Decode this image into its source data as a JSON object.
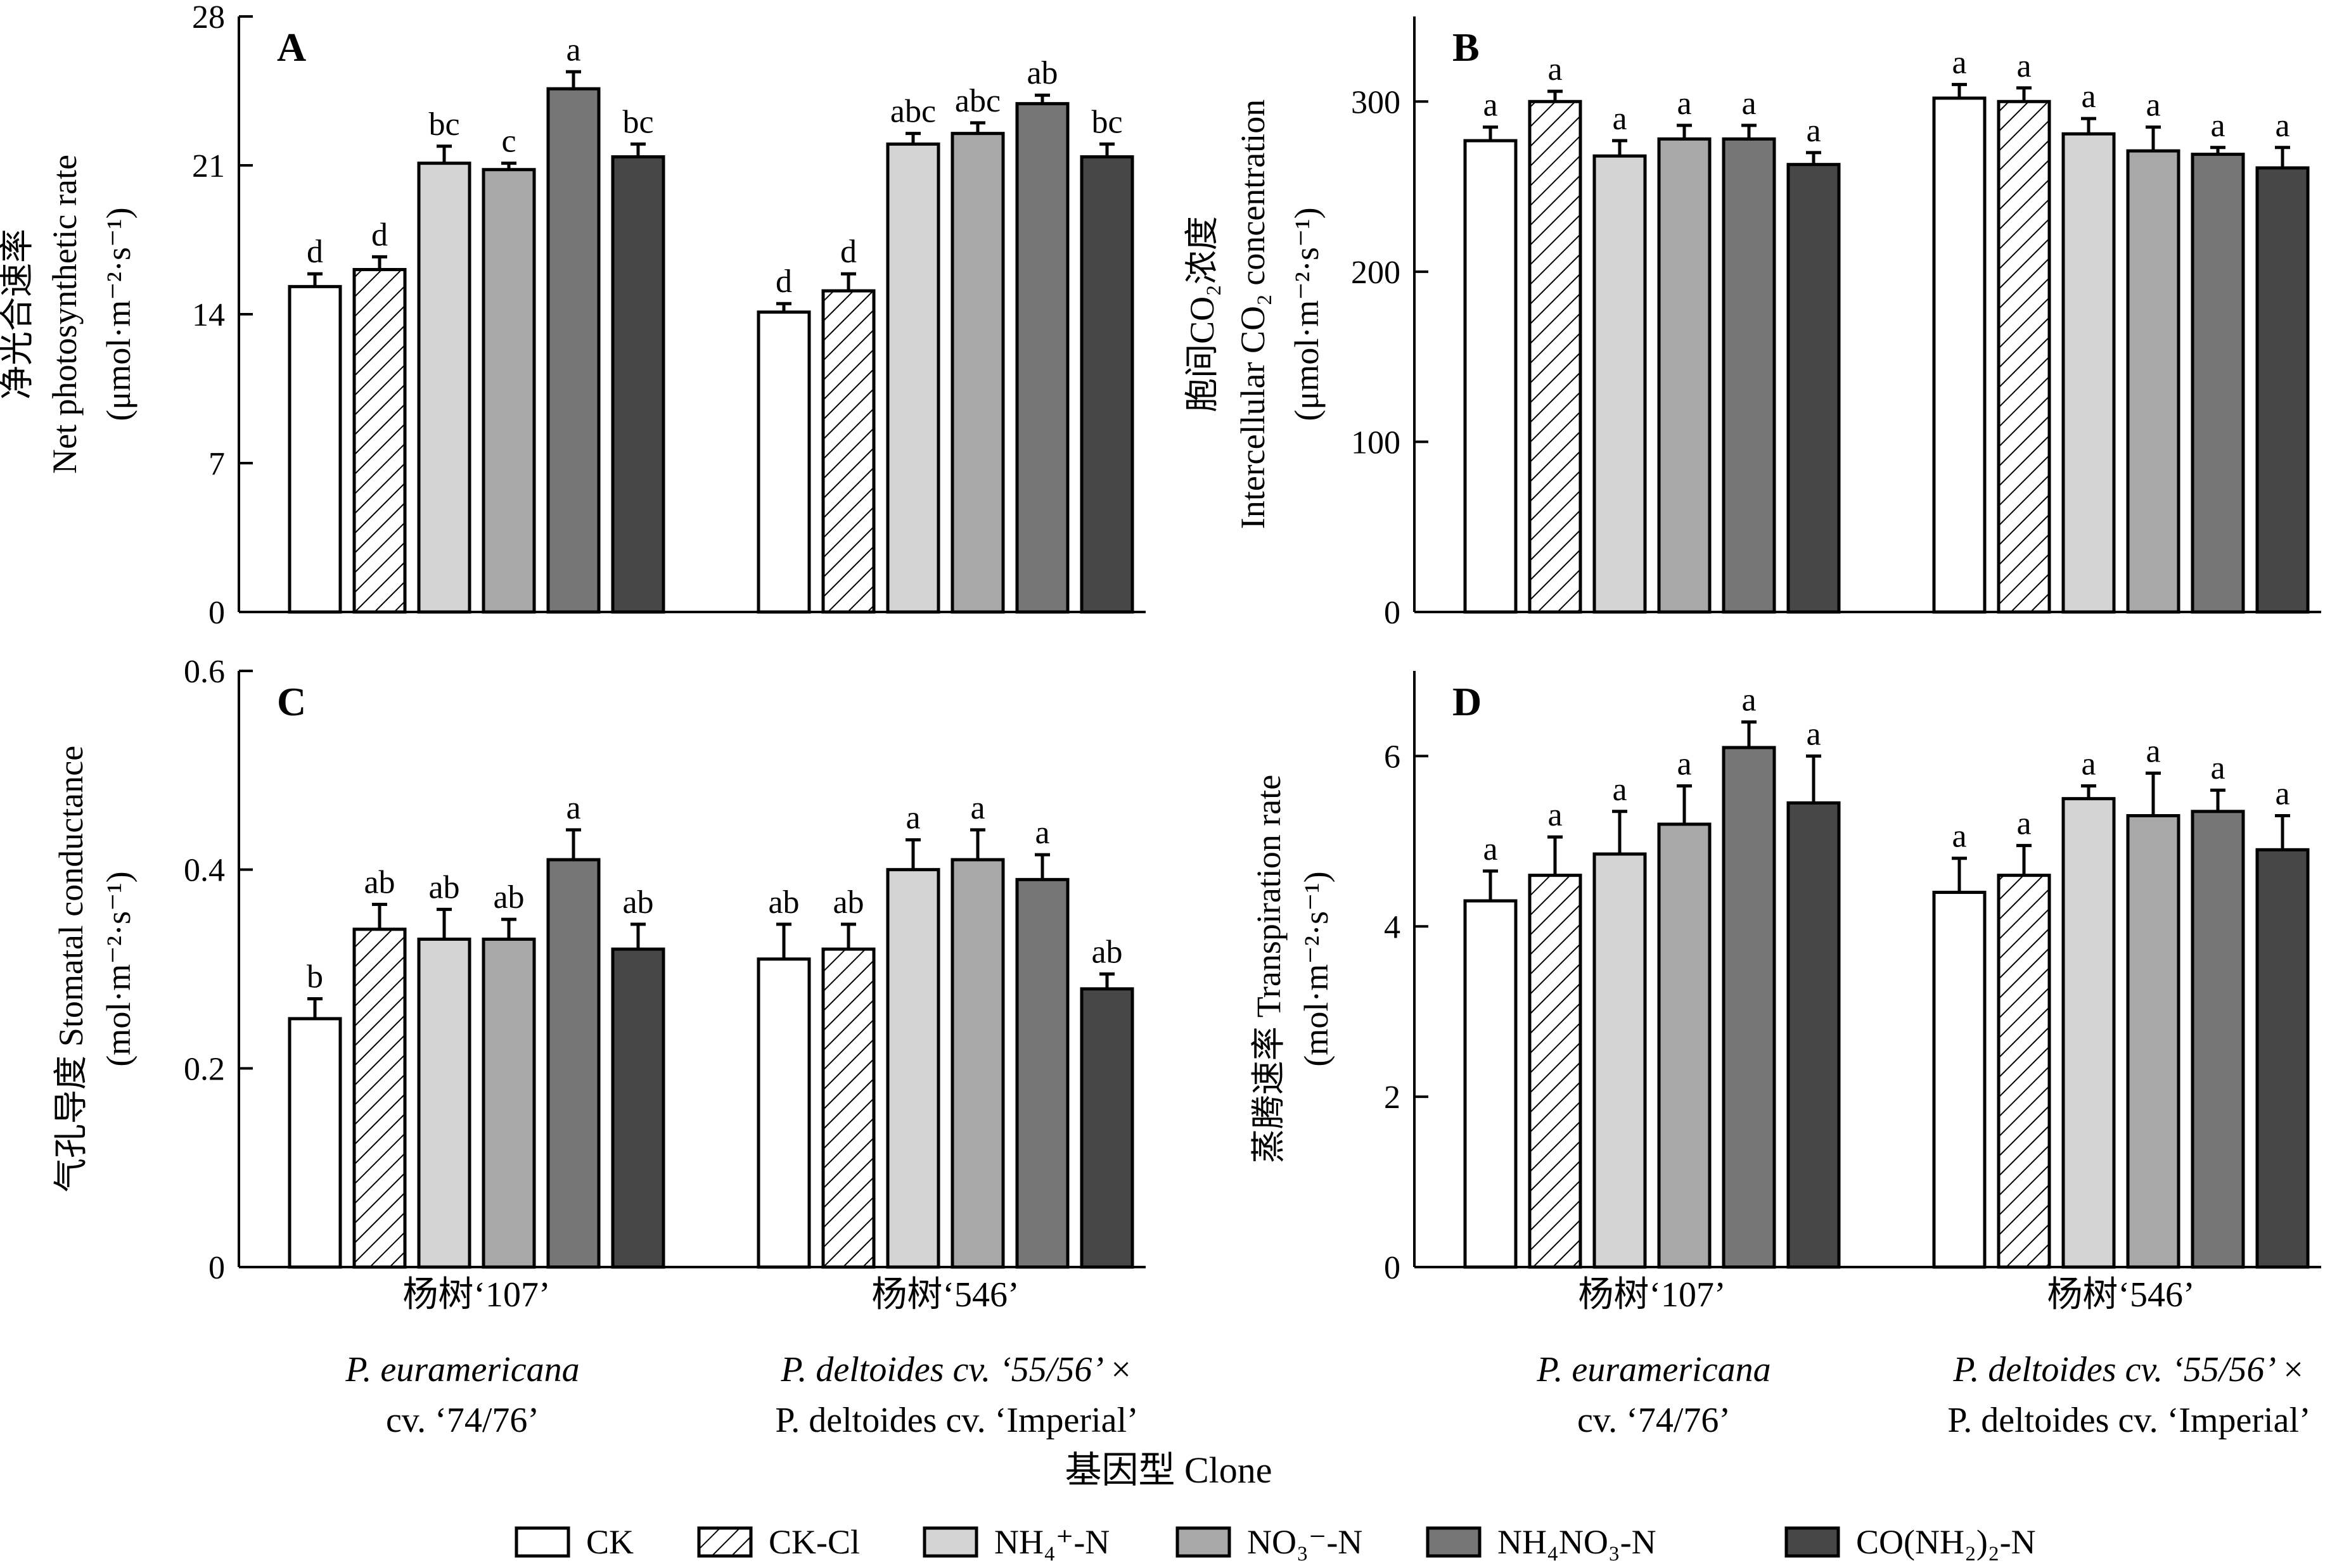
{
  "chart_data": [
    {
      "panel": "A",
      "type": "bar",
      "ylabel_cn": "净光合速率",
      "ylabel_en": "Net photosynthetic rate",
      "ylabel_unit": "(μmol·m⁻²·s⁻¹)",
      "ylim": [
        0,
        28
      ],
      "yticks": [
        "0",
        "7",
        "14",
        "21",
        "28"
      ],
      "grid": false,
      "categories": [
        "杨树‘107’",
        "杨树‘546’"
      ],
      "series": [
        {
          "name": "CK",
          "values": [
            15.3,
            14.1
          ],
          "errors": [
            0.6,
            0.4
          ],
          "letters": [
            "d",
            "d"
          ]
        },
        {
          "name": "CK-Cl",
          "values": [
            16.1,
            15.1
          ],
          "errors": [
            0.6,
            0.8
          ],
          "letters": [
            "d",
            "d"
          ]
        },
        {
          "name": "NH₄⁺-N",
          "values": [
            21.1,
            22.0
          ],
          "errors": [
            0.8,
            0.5
          ],
          "letters": [
            "bc",
            "abc"
          ]
        },
        {
          "name": "NO₃⁻-N",
          "values": [
            20.8,
            22.5
          ],
          "errors": [
            0.3,
            0.5
          ],
          "letters": [
            "c",
            "abc"
          ]
        },
        {
          "name": "NH₄NO₃-N",
          "values": [
            24.6,
            23.9
          ],
          "errors": [
            0.8,
            0.4
          ],
          "letters": [
            "a",
            "ab"
          ]
        },
        {
          "name": "CO(NH₂)₂-N",
          "values": [
            21.4,
            21.4
          ],
          "errors": [
            0.6,
            0.6
          ],
          "letters": [
            "bc",
            "bc"
          ]
        }
      ]
    },
    {
      "panel": "B",
      "type": "bar",
      "ylabel_cn": "胞间CO₂浓度",
      "ylabel_en": "Intercellular CO₂ concentration",
      "ylabel_unit": "(μmol·m⁻²·s⁻¹)",
      "ylim": [
        0,
        350
      ],
      "yticks": [
        "0",
        "100",
        "200",
        "300"
      ],
      "grid": false,
      "categories": [
        "杨树‘107’",
        "杨树‘546’"
      ],
      "series": [
        {
          "name": "CK",
          "values": [
            277,
            302
          ],
          "errors": [
            8,
            8
          ],
          "letters": [
            "a",
            "a"
          ]
        },
        {
          "name": "CK-Cl",
          "values": [
            300,
            300
          ],
          "errors": [
            6,
            8
          ],
          "letters": [
            "a",
            "a"
          ]
        },
        {
          "name": "NH₄⁺-N",
          "values": [
            268,
            281
          ],
          "errors": [
            9,
            9
          ],
          "letters": [
            "a",
            "a"
          ]
        },
        {
          "name": "NO₃⁻-N",
          "values": [
            278,
            271
          ],
          "errors": [
            8,
            14
          ],
          "letters": [
            "a",
            "a"
          ]
        },
        {
          "name": "NH₄NO₃-N",
          "values": [
            278,
            269
          ],
          "errors": [
            8,
            4
          ],
          "letters": [
            "a",
            "a"
          ]
        },
        {
          "name": "CO(NH₂)₂-N",
          "values": [
            263,
            261
          ],
          "errors": [
            7,
            12
          ],
          "letters": [
            "a",
            "a"
          ]
        }
      ]
    },
    {
      "panel": "C",
      "type": "bar",
      "ylabel_cn": "气孔导度",
      "ylabel_en": "Stomatal conductance",
      "ylabel_unit": "(mol·m⁻²·s⁻¹)",
      "ylim": [
        0,
        0.6
      ],
      "yticks": [
        "0",
        "0.2",
        "0.4",
        "0.6"
      ],
      "grid": false,
      "categories": [
        "杨树‘107’",
        "杨树‘546’"
      ],
      "series": [
        {
          "name": "CK",
          "values": [
            0.25,
            0.31
          ],
          "errors": [
            0.02,
            0.035
          ],
          "letters": [
            "b",
            "ab"
          ]
        },
        {
          "name": "CK-Cl",
          "values": [
            0.34,
            0.32
          ],
          "errors": [
            0.025,
            0.025
          ],
          "letters": [
            "ab",
            "ab"
          ]
        },
        {
          "name": "NH₄⁺-N",
          "values": [
            0.33,
            0.4
          ],
          "errors": [
            0.03,
            0.03
          ],
          "letters": [
            "ab",
            "a"
          ]
        },
        {
          "name": "NO₃⁻-N",
          "values": [
            0.33,
            0.41
          ],
          "errors": [
            0.02,
            0.03
          ],
          "letters": [
            "ab",
            "a"
          ]
        },
        {
          "name": "NH₄NO₃-N",
          "values": [
            0.41,
            0.39
          ],
          "errors": [
            0.03,
            0.025
          ],
          "letters": [
            "a",
            "a"
          ]
        },
        {
          "name": "CO(NH₂)₂-N",
          "values": [
            0.32,
            0.28
          ],
          "errors": [
            0.025,
            0.015
          ],
          "letters": [
            "ab",
            "ab"
          ]
        }
      ]
    },
    {
      "panel": "D",
      "type": "bar",
      "ylabel_cn": "蒸腾速率",
      "ylabel_en": "Transpiration rate",
      "ylabel_unit": "(mol·m⁻²·s⁻¹)",
      "ylim": [
        0,
        7
      ],
      "yticks": [
        "0",
        "2",
        "4",
        "6"
      ],
      "grid": false,
      "categories": [
        "杨树‘107’",
        "杨树‘546’"
      ],
      "series": [
        {
          "name": "CK",
          "values": [
            4.3,
            4.4
          ],
          "errors": [
            0.35,
            0.4
          ],
          "letters": [
            "a",
            "a"
          ]
        },
        {
          "name": "CK-Cl",
          "values": [
            4.6,
            4.6
          ],
          "errors": [
            0.45,
            0.35
          ],
          "letters": [
            "a",
            "a"
          ]
        },
        {
          "name": "NH₄⁺-N",
          "values": [
            4.85,
            5.5
          ],
          "errors": [
            0.5,
            0.15
          ],
          "letters": [
            "a",
            "a"
          ]
        },
        {
          "name": "NO₃⁻-N",
          "values": [
            5.2,
            5.3
          ],
          "errors": [
            0.45,
            0.5
          ],
          "letters": [
            "a",
            "a"
          ]
        },
        {
          "name": "NH₄NO₃-N",
          "values": [
            6.1,
            5.35
          ],
          "errors": [
            0.3,
            0.25
          ],
          "letters": [
            "a",
            "a"
          ]
        },
        {
          "name": "CO(NH₂)₂-N",
          "values": [
            5.45,
            4.9
          ],
          "errors": [
            0.55,
            0.4
          ],
          "letters": [
            "a",
            "a"
          ]
        }
      ]
    }
  ],
  "clone_names": [
    {
      "line1": "P. euramericana",
      "line2": "cv. ‘74/76’"
    },
    {
      "line1": "P. deltoides cv. ‘55/56’ ×",
      "line2": "P. deltoides cv. ‘Imperial’"
    }
  ],
  "xlabel": "基因型 Clone",
  "legend": [
    {
      "label": "CK",
      "fill": "#ffffff",
      "hatch": false
    },
    {
      "label": "CK-Cl",
      "fill": "#ffffff",
      "hatch": true
    },
    {
      "label": "NH₄⁺-N",
      "fill": "#d4d4d4",
      "hatch": false
    },
    {
      "label": "NO₃⁻-N",
      "fill": "#a8a8a8",
      "hatch": false
    },
    {
      "label": "NH₄NO₃-N",
      "fill": "#767676",
      "hatch": false
    },
    {
      "label": "CO(NH₂)₂-N",
      "fill": "#474747",
      "hatch": false
    }
  ],
  "legend_position": "bottom",
  "series_colors": [
    "#ffffff",
    "#ffffff",
    "#d4d4d4",
    "#a8a8a8",
    "#767676",
    "#474747"
  ]
}
